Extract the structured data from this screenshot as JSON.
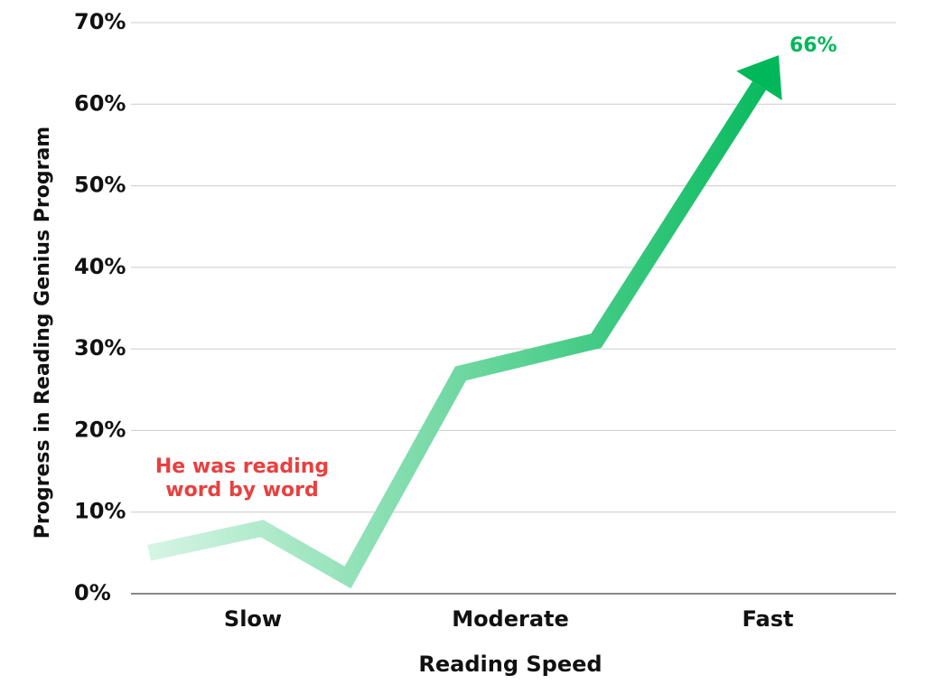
{
  "chart_data": {
    "type": "line",
    "y_axis_label": "Progress in Reading Genius Program",
    "x_axis_label": "Reading Speed",
    "categories": [
      null,
      "Slow",
      null,
      "Moderate",
      null,
      "Fast"
    ],
    "series": [
      {
        "color": "#00b859",
        "values": [
          5,
          8,
          2,
          27,
          31,
          66
        ],
        "value_labels": [
          null,
          null,
          null,
          null,
          null,
          "66%"
        ]
      }
    ],
    "ylim": [
      0,
      70
    ],
    "yticks": [
      {
        "value": 0,
        "label": "0%"
      },
      {
        "value": 10,
        "label": "10%"
      },
      {
        "value": 20,
        "label": "20%"
      },
      {
        "value": 30,
        "label": "30%"
      },
      {
        "value": 40,
        "label": "40%"
      },
      {
        "value": 50,
        "label": "50%"
      },
      {
        "value": 60,
        "label": "60%"
      },
      {
        "value": 70,
        "label": "70%"
      }
    ],
    "grid": true,
    "annotation": {
      "text": "He was reading word by word",
      "color": "#e8403f"
    }
  }
}
